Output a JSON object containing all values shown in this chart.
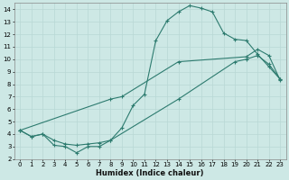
{
  "xlabel": "Humidex (Indice chaleur)",
  "bg_color": "#cde8e5",
  "line_color": "#2d7b6f",
  "grid_color": "#b8d8d5",
  "xlim": [
    -0.5,
    23.5
  ],
  "ylim": [
    2,
    14.5
  ],
  "xticks": [
    0,
    1,
    2,
    3,
    4,
    5,
    6,
    7,
    8,
    9,
    10,
    11,
    12,
    13,
    14,
    15,
    16,
    17,
    18,
    19,
    20,
    21,
    22,
    23
  ],
  "yticks": [
    2,
    3,
    4,
    5,
    6,
    7,
    8,
    9,
    10,
    11,
    12,
    13,
    14
  ],
  "line1_x": [
    0,
    1,
    2,
    3,
    4,
    5,
    6,
    7,
    8,
    9,
    10,
    11,
    12,
    13,
    14,
    15,
    16,
    17,
    18,
    19,
    20,
    21,
    22,
    23
  ],
  "line1_y": [
    4.3,
    3.8,
    4.0,
    3.1,
    3.0,
    2.5,
    3.0,
    3.0,
    3.5,
    4.5,
    6.3,
    7.2,
    11.5,
    13.1,
    13.8,
    14.3,
    14.1,
    13.8,
    12.1,
    11.6,
    11.5,
    10.4,
    9.4,
    8.4
  ],
  "line2_x": [
    0,
    1,
    2,
    3,
    4,
    5,
    6,
    7,
    8,
    14,
    19,
    20,
    21,
    22,
    23
  ],
  "line2_y": [
    4.3,
    3.8,
    4.0,
    3.5,
    3.2,
    3.1,
    3.2,
    3.3,
    3.5,
    6.8,
    9.8,
    10.0,
    10.3,
    9.6,
    8.4
  ],
  "line3_x": [
    0,
    8,
    9,
    14,
    20,
    21,
    22,
    23
  ],
  "line3_y": [
    4.3,
    6.8,
    7.0,
    9.8,
    10.2,
    10.8,
    10.3,
    8.3
  ]
}
